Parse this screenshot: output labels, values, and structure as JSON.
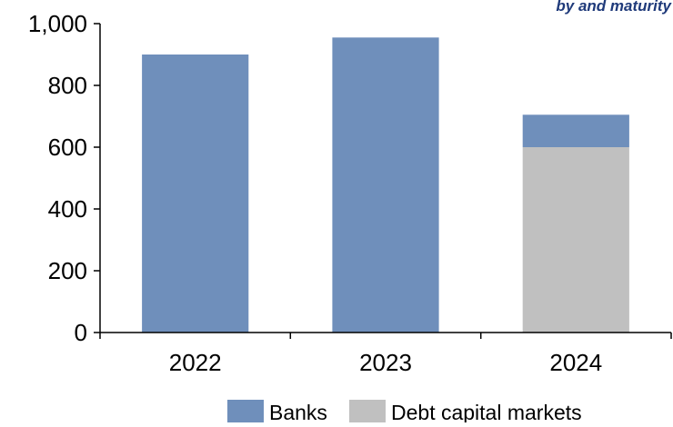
{
  "chart_data": {
    "type": "bar",
    "stacked": true,
    "categories": [
      "2022",
      "2023",
      "2024"
    ],
    "series": [
      {
        "name": "Debt capital markets",
        "values": [
          0,
          0,
          600
        ],
        "color": "#c0c0c0"
      },
      {
        "name": "Banks",
        "values": [
          900,
          955,
          105
        ],
        "color": "#6f8fbb"
      }
    ],
    "ylim": [
      0,
      1000
    ],
    "yticks": [
      0,
      200,
      400,
      600,
      800,
      1000
    ],
    "ytick_labels": [
      "0",
      "200",
      "400",
      "600",
      "800",
      "1,000"
    ],
    "xlabel": "",
    "ylabel": "",
    "grid": false,
    "legend": {
      "placement": "bottom",
      "entries": [
        {
          "name": "Banks",
          "color": "#6f8fbb"
        },
        {
          "name": "Debt capital markets",
          "color": "#c0c0c0"
        }
      ]
    },
    "header_fragment": "by and maturity"
  }
}
